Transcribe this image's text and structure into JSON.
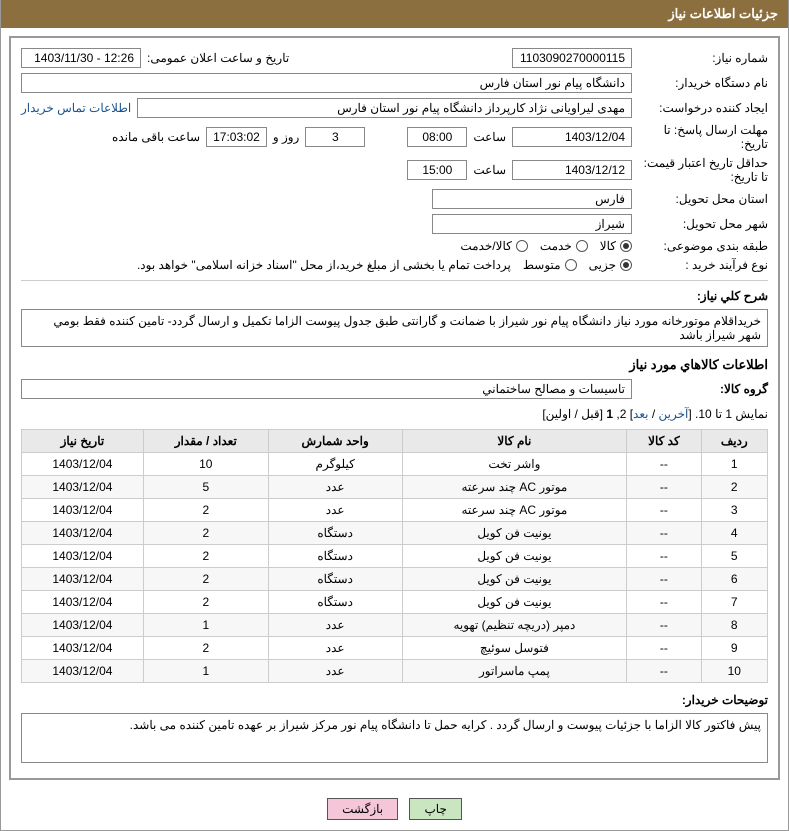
{
  "header": {
    "title": "جزئیات اطلاعات نیاز"
  },
  "fields": {
    "need_no_label": "شماره نیاز:",
    "need_no": "1103090270000115",
    "announce_label": "تاریخ و ساعت اعلان عمومی:",
    "announce": "1403/11/30 - 12:26",
    "buyer_org_label": "نام دستگاه خریدار:",
    "buyer_org": "دانشگاه پیام نور استان فارس",
    "requester_label": "ایجاد کننده درخواست:",
    "requester": "مهدی لیراویانی نژاد کارپرداز دانشگاه پیام نور استان فارس",
    "contact_link": "اطلاعات تماس خریدار",
    "deadline_label": "مهلت ارسال پاسخ: تا تاریخ:",
    "deadline_date": "1403/12/04",
    "time_label": "ساعت",
    "deadline_time": "08:00",
    "days": "3",
    "days_label": "روز و",
    "remaining": "17:03:02",
    "remaining_label": "ساعت باقی مانده",
    "validity_label": "حداقل تاریخ اعتبار قیمت: تا تاریخ:",
    "validity_date": "1403/12/12",
    "validity_time": "15:00",
    "province_label": "استان محل تحویل:",
    "province": "فارس",
    "city_label": "شهر محل تحویل:",
    "city": "شیراز",
    "category_label": "طبقه بندی موضوعی:",
    "cat_opts": {
      "a": "کالا",
      "b": "خدمت",
      "c": "کالا/خدمت"
    },
    "process_label": "نوع فرآیند خرید :",
    "proc_opts": {
      "a": "جزیی",
      "b": "متوسط"
    },
    "payment_note": "پرداخت تمام یا بخشی از مبلغ خرید،از محل \"اسناد خزانه اسلامی\" خواهد بود.",
    "desc_label": "شرح کلي نياز:",
    "desc": "خریداقلام موتورخانه مورد نیاز دانشگاه پیام نور شیراز با ضمانت و گارانتی طبق جدول پیوست الزاما تکمیل و ارسال گردد- تامین کننده فقط بومي شهر شیراز باشد",
    "items_title": "اطلاعات کالاهاي مورد نياز",
    "group_label": "گروه کالا:",
    "group": "تاسیسات و مصالح ساختماني",
    "pager_prefix": "نمایش 1 تا 10. [",
    "pager_last": "آخرین",
    "pager_sep": " / ",
    "pager_next": "بعد",
    "pager_mid": "] 2, ",
    "pager_one": "1",
    "pager_suffix": " [قبل / اولین]",
    "buyer_notes_label": "توضیحات خریدار:",
    "buyer_notes": "پیش فاکتور کالا الزاما با جزئیات پیوست و ارسال گردد . کرایه حمل تا دانشگاه پیام نور مرکز شیراز بر عهده تامین کننده می باشد."
  },
  "table": {
    "headers": {
      "row": "ردیف",
      "code": "کد کالا",
      "name": "نام کالا",
      "unit": "واحد شمارش",
      "qty": "تعداد / مقدار",
      "date": "تاریخ نیاز"
    },
    "rows": [
      {
        "n": "1",
        "code": "--",
        "name": "واشر تخت",
        "unit": "کیلوگرم",
        "qty": "10",
        "date": "1403/12/04"
      },
      {
        "n": "2",
        "code": "--",
        "name": "موتور AC چند سرعته",
        "unit": "عدد",
        "qty": "5",
        "date": "1403/12/04"
      },
      {
        "n": "3",
        "code": "--",
        "name": "موتور AC چند سرعته",
        "unit": "عدد",
        "qty": "2",
        "date": "1403/12/04"
      },
      {
        "n": "4",
        "code": "--",
        "name": "یونیت فن کویل",
        "unit": "دستگاه",
        "qty": "2",
        "date": "1403/12/04"
      },
      {
        "n": "5",
        "code": "--",
        "name": "یونیت فن کویل",
        "unit": "دستگاه",
        "qty": "2",
        "date": "1403/12/04"
      },
      {
        "n": "6",
        "code": "--",
        "name": "یونیت فن کویل",
        "unit": "دستگاه",
        "qty": "2",
        "date": "1403/12/04"
      },
      {
        "n": "7",
        "code": "--",
        "name": "یونیت فن کویل",
        "unit": "دستگاه",
        "qty": "2",
        "date": "1403/12/04"
      },
      {
        "n": "8",
        "code": "--",
        "name": "دمپر (دریچه تنظیم) تهویه",
        "unit": "عدد",
        "qty": "1",
        "date": "1403/12/04"
      },
      {
        "n": "9",
        "code": "--",
        "name": "فتوسل سوئیچ",
        "unit": "عدد",
        "qty": "2",
        "date": "1403/12/04"
      },
      {
        "n": "10",
        "code": "--",
        "name": "پمپ ماسراتور",
        "unit": "عدد",
        "qty": "1",
        "date": "1403/12/04"
      }
    ]
  },
  "buttons": {
    "print": "چاپ",
    "back": "بازگشت"
  }
}
